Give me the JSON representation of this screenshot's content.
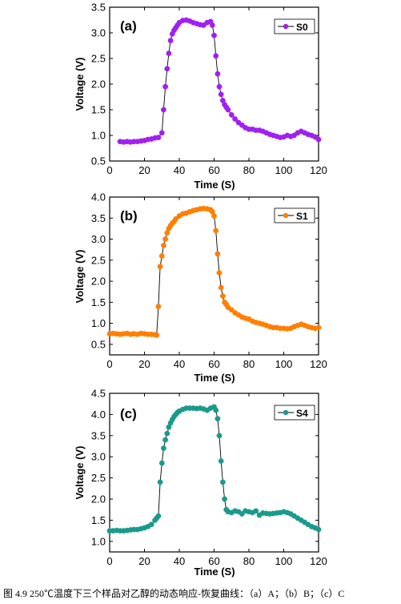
{
  "caption": "图 4.9 250℃温度下三个样品对乙醇的动态响应-恢复曲线：（a）A；（b）B；（c）C",
  "chart_data": [
    {
      "type": "line",
      "panel_label": "(a)",
      "xlabel": "Time (S)",
      "ylabel": "Voltage (V)",
      "xlim": [
        0,
        120
      ],
      "ylim": [
        0.5,
        3.5
      ],
      "xticks": [
        0,
        20,
        40,
        60,
        80,
        100,
        120
      ],
      "yticks": [
        0.5,
        1.0,
        1.5,
        2.0,
        2.5,
        3.0,
        3.5
      ],
      "tick_labels_x": [
        "0",
        "20",
        "40",
        "60",
        "80",
        "100",
        "120"
      ],
      "tick_labels_y": [
        "0.5",
        "1.0",
        "1.5",
        "2.0",
        "2.5",
        "3.0",
        "3.5"
      ],
      "legend_position": "top-right",
      "series": [
        {
          "name": "S0",
          "color": "#a020f0",
          "x": [
            6,
            8,
            10,
            12,
            14,
            16,
            18,
            20,
            22,
            24,
            26,
            28,
            30,
            31,
            32,
            33,
            34,
            35,
            36,
            37,
            38,
            39,
            40,
            42,
            44,
            46,
            48,
            50,
            52,
            54,
            56,
            58,
            59,
            60,
            61,
            62,
            63,
            64,
            65,
            66,
            67,
            68,
            70,
            72,
            74,
            76,
            78,
            80,
            82,
            84,
            86,
            88,
            90,
            92,
            94,
            96,
            98,
            100,
            102,
            104,
            106,
            108,
            110,
            112,
            114,
            116,
            118,
            120
          ],
          "y": [
            0.88,
            0.87,
            0.88,
            0.87,
            0.88,
            0.88,
            0.89,
            0.9,
            0.92,
            0.93,
            0.95,
            0.96,
            1.05,
            1.5,
            1.95,
            2.3,
            2.6,
            2.85,
            2.98,
            3.05,
            3.1,
            3.15,
            3.2,
            3.24,
            3.25,
            3.23,
            3.2,
            3.18,
            3.16,
            3.15,
            3.2,
            3.22,
            3.15,
            2.95,
            2.55,
            2.2,
            1.95,
            1.8,
            1.68,
            1.6,
            1.55,
            1.5,
            1.4,
            1.32,
            1.25,
            1.2,
            1.15,
            1.12,
            1.12,
            1.1,
            1.1,
            1.08,
            1.05,
            1.02,
            1.0,
            0.98,
            0.96,
            0.97,
            1.0,
            0.98,
            1.0,
            1.05,
            1.08,
            1.05,
            1.02,
            1.0,
            0.97,
            0.92
          ]
        }
      ]
    },
    {
      "type": "line",
      "panel_label": "(b)",
      "xlabel": "Time (S)",
      "ylabel": "Voltage (V)",
      "xlim": [
        0,
        120
      ],
      "ylim": [
        0.25,
        4.0
      ],
      "xticks": [
        0,
        20,
        40,
        60,
        80,
        100,
        120
      ],
      "yticks": [
        0.5,
        1.0,
        1.5,
        2.0,
        2.5,
        3.0,
        3.5,
        4.0
      ],
      "tick_labels_x": [
        "0",
        "20",
        "40",
        "60",
        "80",
        "100",
        "120"
      ],
      "tick_labels_y": [
        "0.5",
        "1.0",
        "1.5",
        "2.0",
        "2.5",
        "3.0",
        "3.5",
        "4.0"
      ],
      "legend_position": "top-right",
      "series": [
        {
          "name": "S1",
          "color": "#ff7f00",
          "x": [
            0,
            2,
            4,
            6,
            8,
            10,
            12,
            14,
            16,
            18,
            20,
            22,
            24,
            26,
            27,
            28,
            29,
            30,
            31,
            32,
            33,
            34,
            35,
            36,
            37,
            38,
            40,
            42,
            44,
            46,
            48,
            50,
            52,
            54,
            56,
            58,
            59,
            60,
            61,
            62,
            63,
            64,
            65,
            66,
            67,
            68,
            70,
            72,
            74,
            76,
            78,
            80,
            82,
            84,
            86,
            88,
            90,
            92,
            94,
            96,
            98,
            100,
            102,
            104,
            106,
            108,
            110,
            112,
            114,
            116,
            118,
            120
          ],
          "y": [
            0.75,
            0.76,
            0.75,
            0.74,
            0.75,
            0.76,
            0.74,
            0.75,
            0.74,
            0.76,
            0.75,
            0.74,
            0.74,
            0.73,
            0.72,
            1.4,
            2.35,
            2.6,
            2.85,
            3.0,
            3.15,
            3.25,
            3.32,
            3.38,
            3.42,
            3.48,
            3.55,
            3.6,
            3.62,
            3.65,
            3.68,
            3.7,
            3.72,
            3.73,
            3.72,
            3.7,
            3.65,
            3.55,
            3.2,
            2.65,
            2.2,
            1.85,
            1.65,
            1.5,
            1.45,
            1.38,
            1.32,
            1.25,
            1.2,
            1.15,
            1.12,
            1.1,
            1.05,
            1.02,
            1.0,
            0.98,
            0.95,
            0.92,
            0.9,
            0.9,
            0.88,
            0.88,
            0.87,
            0.88,
            0.92,
            0.95,
            0.98,
            0.95,
            0.92,
            0.9,
            0.88,
            0.9
          ]
        }
      ]
    },
    {
      "type": "line",
      "panel_label": "(c)",
      "xlabel": "Time (S)",
      "ylabel": "Voltage (V)",
      "xlim": [
        0,
        120
      ],
      "ylim": [
        0.75,
        4.5
      ],
      "xticks": [
        0,
        20,
        40,
        60,
        80,
        100,
        120
      ],
      "yticks": [
        1.0,
        1.5,
        2.0,
        2.5,
        3.0,
        3.5,
        4.0,
        4.5
      ],
      "tick_labels_x": [
        "0",
        "20",
        "40",
        "60",
        "80",
        "100",
        "120"
      ],
      "tick_labels_y": [
        "1.0",
        "1.5",
        "2.0",
        "2.5",
        "3.0",
        "3.5",
        "4.0",
        "4.5"
      ],
      "legend_position": "top-right",
      "series": [
        {
          "name": "S4",
          "color": "#1a9a8a",
          "x": [
            0,
            2,
            4,
            6,
            8,
            10,
            12,
            14,
            16,
            18,
            20,
            22,
            24,
            26,
            27,
            28,
            29,
            30,
            31,
            32,
            33,
            34,
            35,
            36,
            37,
            38,
            39,
            40,
            42,
            44,
            46,
            48,
            50,
            52,
            54,
            56,
            58,
            60,
            61,
            62,
            63,
            64,
            65,
            66,
            67,
            68,
            70,
            72,
            74,
            76,
            78,
            80,
            82,
            84,
            86,
            88,
            90,
            92,
            94,
            96,
            98,
            100,
            102,
            104,
            106,
            108,
            110,
            112,
            114,
            116,
            118,
            120
          ],
          "y": [
            1.25,
            1.25,
            1.26,
            1.25,
            1.25,
            1.26,
            1.27,
            1.28,
            1.28,
            1.3,
            1.32,
            1.35,
            1.4,
            1.5,
            1.55,
            1.6,
            2.4,
            2.85,
            3.2,
            3.4,
            3.55,
            3.7,
            3.8,
            3.88,
            3.95,
            4.0,
            4.05,
            4.08,
            4.12,
            4.15,
            4.15,
            4.15,
            4.14,
            4.15,
            4.13,
            4.1,
            4.15,
            4.18,
            4.1,
            3.9,
            3.5,
            2.9,
            2.4,
            2.0,
            1.75,
            1.7,
            1.68,
            1.72,
            1.7,
            1.65,
            1.72,
            1.7,
            1.68,
            1.72,
            1.62,
            1.67,
            1.66,
            1.65,
            1.66,
            1.67,
            1.68,
            1.7,
            1.68,
            1.65,
            1.6,
            1.55,
            1.5,
            1.45,
            1.4,
            1.35,
            1.32,
            1.28
          ]
        }
      ]
    }
  ]
}
